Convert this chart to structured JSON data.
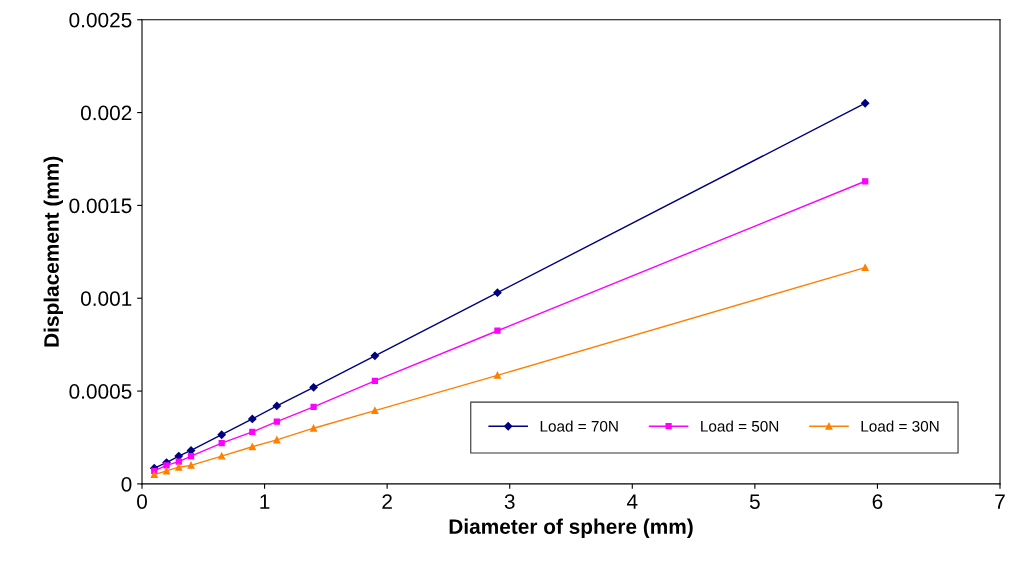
{
  "chart_data": {
    "type": "line",
    "xlabel": "Diameter of sphere (mm)",
    "ylabel": "Displacement (mm)",
    "xlim": [
      0,
      7
    ],
    "xticks": [
      0,
      1,
      2,
      3,
      4,
      5,
      6,
      7
    ],
    "ylim": [
      0,
      0.0025
    ],
    "yticks": [
      0,
      0.0005,
      0.001,
      0.0015,
      0.002,
      0.0025
    ],
    "grid": false,
    "legend": "bottom right",
    "x": [
      0.1,
      0.2,
      0.3,
      0.4,
      0.65,
      0.9,
      1.1,
      1.4,
      1.9,
      2.9,
      5.9
    ],
    "series": [
      {
        "name": "Load = 70N",
        "color": "#000080",
        "marker": "diamond",
        "values": [
          8.5e-05,
          0.000115,
          0.00015,
          0.00018,
          0.000265,
          0.00035,
          0.00042,
          0.00052,
          0.00069,
          0.00103,
          0.00205
        ]
      },
      {
        "name": "Load = 50N",
        "color": "#ff00ff",
        "marker": "square",
        "values": [
          7e-05,
          0.0001,
          0.00012,
          0.00015,
          0.00022,
          0.00028,
          0.000335,
          0.000415,
          0.000555,
          0.000825,
          0.00163
        ]
      },
      {
        "name": "Load = 30N",
        "color": "#ff8000",
        "marker": "triangle",
        "values": [
          5e-05,
          7e-05,
          9e-05,
          0.0001,
          0.00015,
          0.0002,
          0.000237,
          0.0003,
          0.000395,
          0.000585,
          0.001165
        ]
      }
    ]
  }
}
